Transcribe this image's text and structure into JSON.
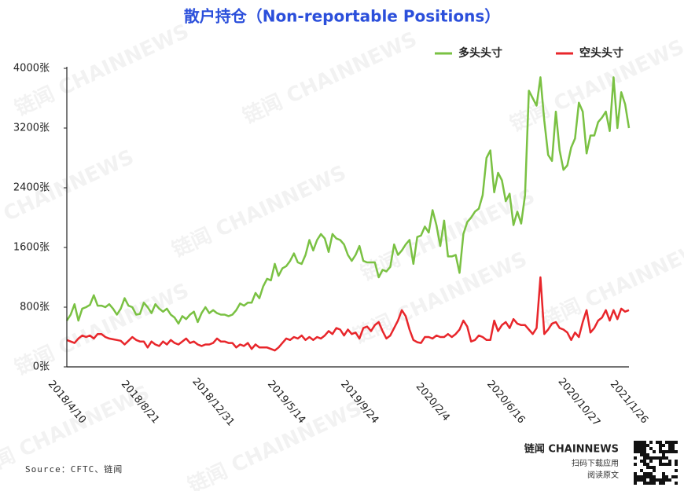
{
  "chart_data": {
    "type": "line",
    "title": "散户持仓（Non-reportable Positions）",
    "categories": [
      "2018/4/10",
      null,
      null,
      null,
      null,
      null,
      null,
      null,
      null,
      null,
      null,
      null,
      null,
      null,
      null,
      null,
      null,
      null,
      null,
      "2018/8/21",
      null,
      null,
      null,
      null,
      null,
      null,
      null,
      null,
      null,
      null,
      null,
      null,
      null,
      null,
      null,
      null,
      null,
      null,
      "2018/12/31",
      null,
      null,
      null,
      null,
      null,
      null,
      null,
      null,
      null,
      null,
      null,
      null,
      null,
      null,
      null,
      null,
      null,
      null,
      "2019/5/14",
      null,
      null,
      null,
      null,
      null,
      null,
      null,
      null,
      null,
      null,
      null,
      null,
      null,
      null,
      null,
      null,
      null,
      null,
      "2019/9/24",
      null,
      null,
      null,
      null,
      null,
      null,
      null,
      null,
      null,
      null,
      null,
      null,
      null,
      null,
      null,
      null,
      null,
      null,
      "2020/2/4",
      null,
      null,
      null,
      null,
      null,
      null,
      null,
      null,
      null,
      null,
      null,
      null,
      null,
      null,
      null,
      null,
      null,
      null,
      "2020/6/16",
      null,
      null,
      null,
      null,
      null,
      null,
      null,
      null,
      null,
      null,
      null,
      null,
      null,
      null,
      null,
      null,
      null,
      null,
      "2020/10/27",
      null,
      null,
      null,
      null,
      null,
      null,
      null,
      null,
      null,
      null,
      null,
      null,
      "2021/1/26"
    ],
    "series": [
      {
        "name": "多头头寸",
        "color": "#7ac143",
        "values": [
          620,
          700,
          840,
          620,
          780,
          800,
          830,
          960,
          820,
          820,
          800,
          840,
          780,
          700,
          780,
          920,
          820,
          800,
          700,
          710,
          860,
          800,
          720,
          840,
          780,
          740,
          780,
          700,
          660,
          580,
          680,
          640,
          700,
          740,
          600,
          720,
          800,
          720,
          760,
          720,
          700,
          700,
          680,
          700,
          760,
          850,
          820,
          860,
          860,
          990,
          920,
          1080,
          1180,
          1160,
          1380,
          1220,
          1320,
          1350,
          1420,
          1520,
          1400,
          1380,
          1500,
          1700,
          1560,
          1700,
          1780,
          1720,
          1540,
          1780,
          1720,
          1700,
          1640,
          1500,
          1420,
          1500,
          1620,
          1420,
          1400,
          1400,
          1400,
          1200,
          1300,
          1280,
          1340,
          1640,
          1500,
          1560,
          1640,
          1700,
          1380,
          1740,
          1760,
          1880,
          1800,
          2100,
          1900,
          1620,
          1960,
          1480,
          1480,
          1500,
          1260,
          1780,
          1940,
          2000,
          2080,
          2120,
          2300,
          2800,
          2900,
          2340,
          2600,
          2500,
          2220,
          2320,
          1900,
          2080,
          1920,
          2300,
          3700,
          3600,
          3500,
          3880,
          3300,
          2840,
          2760,
          3420,
          2900,
          2640,
          2700,
          2940,
          3060,
          3540,
          3420,
          2860,
          3100,
          3100,
          3280,
          3340,
          3420,
          3160,
          3880,
          3200,
          3680,
          3520,
          3200
        ]
      },
      {
        "name": "空头头寸",
        "color": "#e8262b",
        "values": [
          360,
          340,
          320,
          380,
          420,
          400,
          420,
          380,
          440,
          440,
          400,
          380,
          370,
          360,
          350,
          300,
          350,
          400,
          360,
          340,
          340,
          260,
          340,
          300,
          280,
          340,
          300,
          360,
          320,
          300,
          340,
          380,
          320,
          340,
          300,
          280,
          300,
          300,
          320,
          380,
          340,
          340,
          320,
          320,
          260,
          300,
          280,
          320,
          240,
          300,
          260,
          260,
          260,
          240,
          220,
          260,
          320,
          380,
          360,
          400,
          380,
          420,
          360,
          400,
          360,
          400,
          380,
          420,
          480,
          440,
          520,
          500,
          420,
          500,
          440,
          460,
          380,
          520,
          540,
          480,
          560,
          600,
          480,
          380,
          420,
          520,
          620,
          760,
          680,
          500,
          360,
          330,
          320,
          400,
          400,
          380,
          420,
          400,
          400,
          440,
          400,
          440,
          500,
          620,
          540,
          340,
          360,
          420,
          400,
          360,
          360,
          620,
          480,
          560,
          600,
          520,
          640,
          580,
          560,
          560,
          500,
          440,
          520,
          1200,
          440,
          500,
          580,
          600,
          520,
          500,
          460,
          360,
          460,
          400,
          600,
          760,
          460,
          520,
          620,
          660,
          760,
          620,
          760,
          640,
          780,
          740,
          760
        ]
      }
    ],
    "ylim": [
      0,
      4000
    ],
    "yticks": [
      {
        "value": 0,
        "label": "0张"
      },
      {
        "value": 800,
        "label": "800张"
      },
      {
        "value": 1600,
        "label": "1600张"
      },
      {
        "value": 2400,
        "label": "2400张"
      },
      {
        "value": 3200,
        "label": "3200张"
      },
      {
        "value": 4000,
        "label": "4000张"
      }
    ],
    "grid": false,
    "legend_position": "top-right",
    "source": "Source：CFTC、链闻",
    "watermark": "链闻 CHAINNEWS"
  },
  "branding": {
    "brand": "链闻 CHAINNEWS",
    "download": "扫码下载应用",
    "read": "阅读原文"
  }
}
